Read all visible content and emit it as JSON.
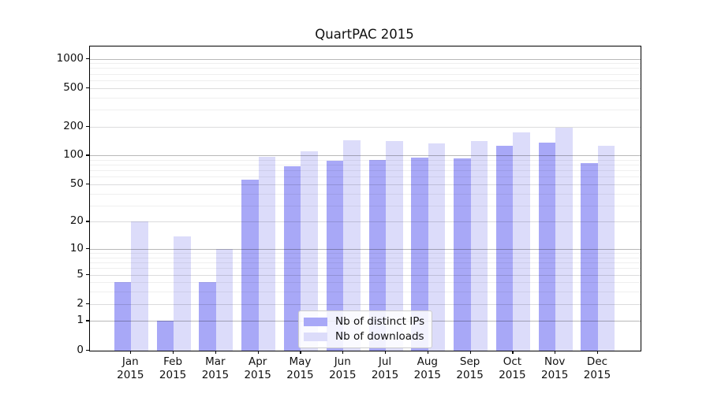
{
  "chart_data": {
    "type": "bar",
    "title": "QuartPAC 2015",
    "categories": [
      "Jan",
      "Feb",
      "Mar",
      "Apr",
      "May",
      "Jun",
      "Jul",
      "Aug",
      "Sep",
      "Oct",
      "Nov",
      "Dec"
    ],
    "year_label": "2015",
    "series": [
      {
        "name": "Nb of distinct IPs",
        "color": "#a8a8f7",
        "values": [
          4,
          1,
          4,
          56,
          78,
          88,
          90,
          95,
          93,
          126,
          137,
          83
        ]
      },
      {
        "name": "Nb of downloads",
        "color": "#dcdcfa",
        "values": [
          20,
          14,
          10,
          97,
          110,
          143,
          141,
          134,
          141,
          175,
          195,
          126
        ]
      }
    ],
    "yticks": [
      0,
      1,
      2,
      5,
      10,
      20,
      50,
      100,
      200,
      500,
      1000
    ],
    "minor_gridlines": [
      3,
      4,
      6,
      7,
      8,
      9,
      30,
      40,
      60,
      70,
      80,
      90,
      300,
      400,
      600,
      700,
      800,
      900
    ],
    "scale": "log1p",
    "ylim": [
      0,
      1340
    ],
    "grid": true,
    "legend_position": "lower-center",
    "grid_colors": {
      "decade": "#b8b8b8",
      "labeled": "#dcdcdd",
      "minor": "#efefef"
    }
  }
}
